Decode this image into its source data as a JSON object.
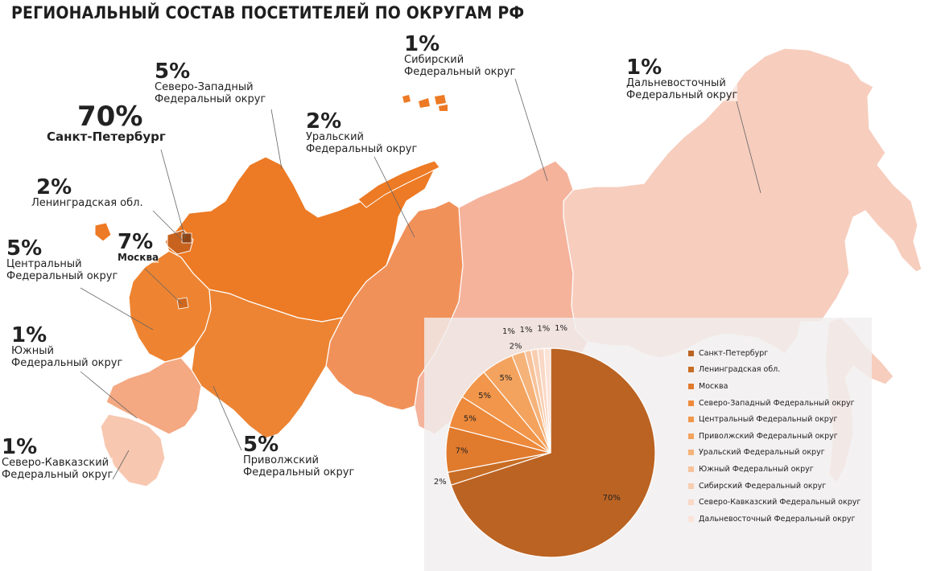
{
  "title": "РЕГИОНАЛЬНЫЙ СОСТАВ ПОСЕТИТЕЛЕЙ ПО ОКРУГАМ РФ",
  "labels": {
    "spb": {
      "pct": "70%",
      "name": "Санкт-Петербург"
    },
    "lenobl": {
      "pct": "2%",
      "name": "Ленинградская обл."
    },
    "moscow": {
      "pct": "7%",
      "name": "Москва"
    },
    "nw": {
      "pct": "5%",
      "line1": "Северо-Западный",
      "line2": "Федеральный округ"
    },
    "central": {
      "pct": "5%",
      "line1": "Центральный",
      "line2": "Федеральный округ"
    },
    "south": {
      "pct": "1%",
      "line1": "Южный",
      "line2": "Федеральный округ"
    },
    "ncaucasus": {
      "pct": "1%",
      "line1": "Северо-Кавказский",
      "line2": "Федеральный округ"
    },
    "volga": {
      "pct": "5%",
      "line1": "Приволжский",
      "line2": "Федеральный округ"
    },
    "ural": {
      "pct": "2%",
      "line1": "Уральский",
      "line2": "Федеральный округ"
    },
    "siberia": {
      "pct": "1%",
      "line1": "Сибирский",
      "line2": "Федеральный округ"
    },
    "fareast": {
      "pct": "1%",
      "line1": "Дальневосточный",
      "line2": "Федеральный округ"
    }
  },
  "chart_data": {
    "type": "pie",
    "categories": [
      "Санкт-Петербург",
      "Ленинградская обл.",
      "Москва",
      "Северо-Западный Федеральный округ",
      "Центральный Федеральный округ",
      "Приволжский Федеральный округ",
      "Уральский Федеральный округ",
      "Южный Федеральный округ",
      "Сибирский Федеральный округ",
      "Северо-Кавказский Федеральный округ",
      "Дальневосточный Федеральный округ"
    ],
    "values": [
      70,
      2,
      7,
      5,
      5,
      5,
      2,
      1,
      1,
      1,
      1
    ],
    "data_labels": [
      "70%",
      "2%",
      "7%",
      "5%",
      "5%",
      "5%",
      "2%",
      "1%",
      "1%",
      "1%",
      "1%"
    ],
    "colors": [
      "#bb6323",
      "#c86d25",
      "#e07a2d",
      "#ee8a3c",
      "#f1964a",
      "#f3a35e",
      "#f5b37a",
      "#f7c29a",
      "#f8cdb0",
      "#fad8c6",
      "#fbe3d8"
    ],
    "legend_position": "right"
  }
}
